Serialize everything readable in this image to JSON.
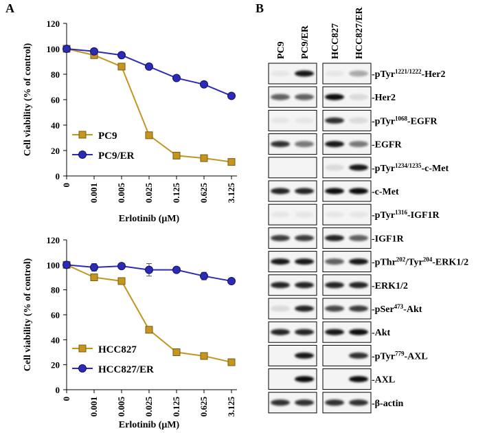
{
  "panel_labels": [
    "A",
    "B"
  ],
  "chart_data": [
    {
      "type": "line",
      "x_label": "Erlotinib (μM)",
      "y_label": "Cell viability (% of control)",
      "categories": [
        "0",
        "0.001",
        "0.005",
        "0.025",
        "0.125",
        "0.625",
        "3.125"
      ],
      "ylim": [
        0,
        120
      ],
      "yticks": [
        0,
        20,
        40,
        60,
        80,
        100,
        120
      ],
      "legend": "lower-left",
      "series": [
        {
          "name": "PC9",
          "color": "#c4951f",
          "marker": "square",
          "values": [
            100,
            95,
            86,
            32,
            16,
            14,
            11
          ]
        },
        {
          "name": "PC9/ER",
          "color": "#2b2bb5",
          "marker": "circle",
          "values": [
            100,
            98,
            95,
            86,
            77,
            72,
            63
          ]
        }
      ]
    },
    {
      "type": "line",
      "x_label": "Erlotinib (μM)",
      "y_label": "Cell viability (% of control)",
      "categories": [
        "0",
        "0.001",
        "0.005",
        "0.025",
        "0.125",
        "0.625",
        "3.125"
      ],
      "ylim": [
        0,
        120
      ],
      "yticks": [
        0,
        20,
        40,
        60,
        80,
        100,
        120
      ],
      "legend": "lower-left",
      "series": [
        {
          "name": "HCC827",
          "color": "#c4951f",
          "marker": "square",
          "values": [
            100,
            90,
            87,
            48,
            30,
            27,
            22
          ]
        },
        {
          "name": "HCC827/ER",
          "color": "#2b2bb5",
          "marker": "circle",
          "values": [
            100,
            98,
            99,
            96,
            96,
            91,
            87
          ],
          "errors": [
            1,
            3,
            1,
            5,
            2,
            3,
            2
          ]
        }
      ]
    }
  ],
  "blot": {
    "lanes": [
      "PC9",
      "PC9/ER",
      "HCC827",
      "HCC827/ER"
    ],
    "rows": [
      {
        "label": [
          "-pTyr",
          "1221/1222",
          "-Her2"
        ]
      },
      {
        "label": [
          "-Her2"
        ]
      },
      {
        "label": [
          "-pTyr",
          "1068",
          "-EGFR"
        ]
      },
      {
        "label": [
          "-EGFR"
        ]
      },
      {
        "label": [
          "-pTyr",
          "1234/1235",
          "-c-Met"
        ]
      },
      {
        "label": [
          "-c-Met"
        ]
      },
      {
        "label": [
          "-pTyr",
          "1316",
          "-IGF1R"
        ]
      },
      {
        "label": [
          "-IGF1R"
        ]
      },
      {
        "label": [
          "-pThr",
          "202",
          "/Tyr",
          "204",
          "-ERK1/2"
        ]
      },
      {
        "label": [
          "-ERK1/2"
        ]
      },
      {
        "label": [
          "-pSer",
          "473",
          "-Akt"
        ]
      },
      {
        "label": [
          "-Akt"
        ]
      },
      {
        "label": [
          "-pTyr",
          "779",
          "-AXL"
        ]
      },
      {
        "label": [
          "-AXL"
        ]
      },
      {
        "label": [
          "-β-actin"
        ]
      }
    ]
  }
}
